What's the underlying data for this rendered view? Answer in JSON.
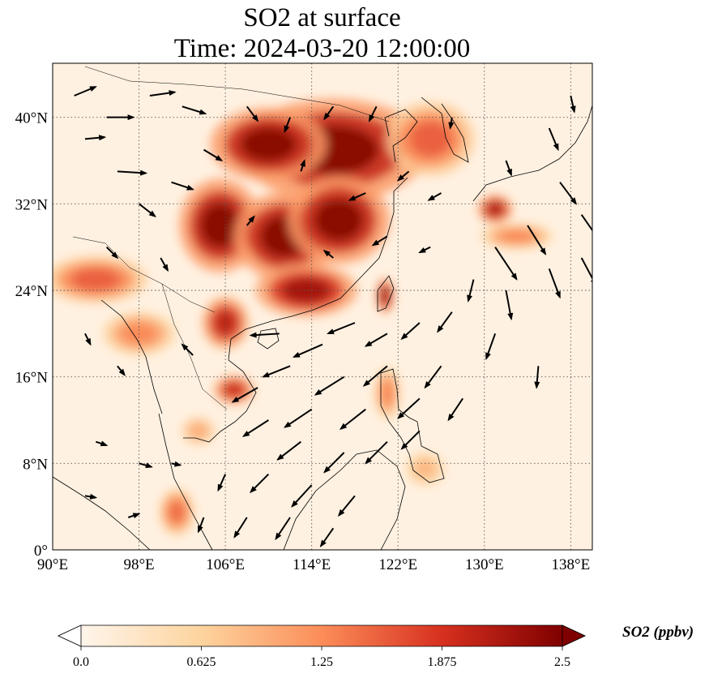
{
  "title": {
    "line1": "SO2 at surface",
    "line2": "Time: 2024-03-20 12:00:00"
  },
  "map": {
    "lon_range": [
      90,
      140
    ],
    "lat_range": [
      0,
      45
    ],
    "lon_ticks": [
      {
        "value": 90,
        "label": "90°E"
      },
      {
        "value": 98,
        "label": "98°E"
      },
      {
        "value": 106,
        "label": "106°E"
      },
      {
        "value": 114,
        "label": "114°E"
      },
      {
        "value": 122,
        "label": "122°E"
      },
      {
        "value": 130,
        "label": "130°E"
      },
      {
        "value": 138,
        "label": "138°E"
      }
    ],
    "lat_ticks": [
      {
        "value": 0,
        "label": "0°"
      },
      {
        "value": 8,
        "label": "8°N"
      },
      {
        "value": 16,
        "label": "16°N"
      },
      {
        "value": 24,
        "label": "24°N"
      },
      {
        "value": 32,
        "label": "32°N"
      },
      {
        "value": 40,
        "label": "40°N"
      }
    ],
    "gridlines": "dotted",
    "field": {
      "variable": "SO2",
      "background_value": 0.08,
      "hotspots": [
        {
          "lon": 116,
          "lat": 37,
          "r_lon": 6.5,
          "r_lat": 3.5,
          "value": 2.5
        },
        {
          "lon": 110,
          "lat": 37.5,
          "r_lon": 4,
          "r_lat": 2.5,
          "value": 2.5
        },
        {
          "lon": 105.5,
          "lat": 30,
          "r_lon": 2.8,
          "r_lat": 3.2,
          "value": 2.5
        },
        {
          "lon": 111.5,
          "lat": 29,
          "r_lon": 3.5,
          "r_lat": 3,
          "value": 2.5
        },
        {
          "lon": 116.5,
          "lat": 30.5,
          "r_lon": 3.5,
          "r_lat": 3,
          "value": 2.5
        },
        {
          "lon": 113.5,
          "lat": 24,
          "r_lon": 3.5,
          "r_lat": 1.8,
          "value": 2.3
        },
        {
          "lon": 106,
          "lat": 21,
          "r_lon": 1.6,
          "r_lat": 1.8,
          "value": 2.1
        },
        {
          "lon": 94,
          "lat": 25,
          "r_lon": 3.5,
          "r_lat": 1.6,
          "value": 1.6
        },
        {
          "lon": 98,
          "lat": 20,
          "r_lon": 2.5,
          "r_lat": 1.5,
          "value": 1.3
        },
        {
          "lon": 106.8,
          "lat": 14.8,
          "r_lon": 1.4,
          "r_lat": 1,
          "value": 2.0
        },
        {
          "lon": 120.8,
          "lat": 23.5,
          "r_lon": 0.6,
          "r_lat": 1.2,
          "value": 2.4
        },
        {
          "lon": 125,
          "lat": 38,
          "r_lon": 3,
          "r_lat": 2.5,
          "value": 1.6
        },
        {
          "lon": 131,
          "lat": 31.5,
          "r_lon": 1.2,
          "r_lat": 1,
          "value": 2.2
        },
        {
          "lon": 133,
          "lat": 29,
          "r_lon": 2.5,
          "r_lat": 0.9,
          "value": 1.3
        },
        {
          "lon": 121,
          "lat": 14.5,
          "r_lon": 0.9,
          "r_lat": 1.8,
          "value": 1.3
        },
        {
          "lon": 124.5,
          "lat": 7.5,
          "r_lon": 1.4,
          "r_lat": 1.2,
          "value": 0.9
        },
        {
          "lon": 101.5,
          "lat": 3.5,
          "r_lon": 1.2,
          "r_lat": 1.6,
          "value": 1.5
        },
        {
          "lon": 103.5,
          "lat": 11,
          "r_lon": 1.2,
          "r_lat": 1,
          "value": 1.0
        }
      ]
    },
    "wind": {
      "vectors": [
        {
          "lon": 92,
          "lat": 42,
          "u": 1.2,
          "v": 0.5
        },
        {
          "lon": 95,
          "lat": 40,
          "u": 1.5,
          "v": 0
        },
        {
          "lon": 93,
          "lat": 38,
          "u": 1.1,
          "v": 0.1
        },
        {
          "lon": 96,
          "lat": 35,
          "u": 1.6,
          "v": -0.1
        },
        {
          "lon": 99,
          "lat": 42,
          "u": 1.4,
          "v": 0.2
        },
        {
          "lon": 102,
          "lat": 41,
          "u": 1.3,
          "v": -0.4
        },
        {
          "lon": 104,
          "lat": 37,
          "u": 1.0,
          "v": -0.6
        },
        {
          "lon": 98,
          "lat": 32,
          "u": 0.9,
          "v": -0.7
        },
        {
          "lon": 101,
          "lat": 34,
          "u": 1.2,
          "v": -0.4
        },
        {
          "lon": 108,
          "lat": 41,
          "u": 0.6,
          "v": -0.8
        },
        {
          "lon": 112,
          "lat": 40,
          "u": -0.3,
          "v": -0.8
        },
        {
          "lon": 116,
          "lat": 41,
          "u": -0.5,
          "v": -0.7
        },
        {
          "lon": 120,
          "lat": 41,
          "u": -0.4,
          "v": -0.8
        },
        {
          "lon": 123,
          "lat": 35,
          "u": -0.6,
          "v": -0.5
        },
        {
          "lon": 126,
          "lat": 33,
          "u": -0.7,
          "v": -0.4
        },
        {
          "lon": 119,
          "lat": 33,
          "u": -0.9,
          "v": -0.4
        },
        {
          "lon": 113,
          "lat": 35,
          "u": 0.2,
          "v": 0.6
        },
        {
          "lon": 108,
          "lat": 30,
          "u": 0.4,
          "v": 0.5
        },
        {
          "lon": 116,
          "lat": 27,
          "u": -0.5,
          "v": 0.4
        },
        {
          "lon": 121,
          "lat": 29,
          "u": -0.8,
          "v": -0.5
        },
        {
          "lon": 132,
          "lat": 36,
          "u": 0.3,
          "v": -0.8
        },
        {
          "lon": 136,
          "lat": 39,
          "u": 0.5,
          "v": -1.2
        },
        {
          "lon": 137,
          "lat": 34,
          "u": 0.9,
          "v": -1.2
        },
        {
          "lon": 139,
          "lat": 31,
          "u": 0.9,
          "v": -1.3
        },
        {
          "lon": 134,
          "lat": 30,
          "u": 1.0,
          "v": -1.6
        },
        {
          "lon": 131,
          "lat": 28,
          "u": 1.2,
          "v": -1.8
        },
        {
          "lon": 136,
          "lat": 26,
          "u": 0.6,
          "v": -1.6
        },
        {
          "lon": 139,
          "lat": 27,
          "u": 0.8,
          "v": -1.5
        },
        {
          "lon": 132,
          "lat": 24,
          "u": 0.3,
          "v": -1.6
        },
        {
          "lon": 129,
          "lat": 25,
          "u": -0.3,
          "v": -1.2
        },
        {
          "lon": 127,
          "lat": 22,
          "u": -0.8,
          "v": -1.1
        },
        {
          "lon": 131,
          "lat": 20,
          "u": -0.5,
          "v": -1.4
        },
        {
          "lon": 135,
          "lat": 17,
          "u": -0.1,
          "v": -1.2
        },
        {
          "lon": 124,
          "lat": 21,
          "u": -1.0,
          "v": -0.9
        },
        {
          "lon": 121,
          "lat": 20,
          "u": -1.2,
          "v": -0.7
        },
        {
          "lon": 118,
          "lat": 21,
          "u": -1.5,
          "v": -0.6
        },
        {
          "lon": 115,
          "lat": 19,
          "u": -1.6,
          "v": -0.7
        },
        {
          "lon": 112,
          "lat": 17,
          "u": -1.5,
          "v": -0.6
        },
        {
          "lon": 111,
          "lat": 20,
          "u": -1.6,
          "v": -0.1
        },
        {
          "lon": 109,
          "lat": 15,
          "u": -1.4,
          "v": -0.8
        },
        {
          "lon": 117,
          "lat": 16,
          "u": -1.6,
          "v": -1.0
        },
        {
          "lon": 121,
          "lat": 17,
          "u": -1.3,
          "v": -1.1
        },
        {
          "lon": 126,
          "lat": 17,
          "u": -0.9,
          "v": -1.2
        },
        {
          "lon": 128,
          "lat": 14,
          "u": -0.8,
          "v": -1.2
        },
        {
          "lon": 124,
          "lat": 14,
          "u": -1.2,
          "v": -1.1
        },
        {
          "lon": 119,
          "lat": 13,
          "u": -1.4,
          "v": -1.1
        },
        {
          "lon": 114,
          "lat": 13,
          "u": -1.5,
          "v": -1.0
        },
        {
          "lon": 110,
          "lat": 12,
          "u": -1.4,
          "v": -0.9
        },
        {
          "lon": 113,
          "lat": 10,
          "u": -1.3,
          "v": -1.0
        },
        {
          "lon": 117,
          "lat": 9,
          "u": -1.1,
          "v": -1.1
        },
        {
          "lon": 121,
          "lat": 10,
          "u": -1.2,
          "v": -1.2
        },
        {
          "lon": 124,
          "lat": 11,
          "u": -1.0,
          "v": -1.0
        },
        {
          "lon": 110,
          "lat": 7,
          "u": -1.0,
          "v": -1.0
        },
        {
          "lon": 114,
          "lat": 6,
          "u": -1.1,
          "v": -1.2
        },
        {
          "lon": 118,
          "lat": 5,
          "u": -0.9,
          "v": -1.1
        },
        {
          "lon": 112,
          "lat": 3,
          "u": -0.8,
          "v": -1.2
        },
        {
          "lon": 108,
          "lat": 3,
          "u": -0.7,
          "v": -1.1
        },
        {
          "lon": 116,
          "lat": 2,
          "u": -0.7,
          "v": -1.0
        },
        {
          "lon": 106,
          "lat": 7,
          "u": -0.4,
          "v": -0.9
        },
        {
          "lon": 104,
          "lat": 3,
          "u": -0.3,
          "v": -0.8
        },
        {
          "lon": 93,
          "lat": 20,
          "u": 0.3,
          "v": -0.6
        },
        {
          "lon": 96,
          "lat": 17,
          "u": 0.4,
          "v": -0.5
        },
        {
          "lon": 94,
          "lat": 10,
          "u": 0.6,
          "v": -0.2
        },
        {
          "lon": 98,
          "lat": 8,
          "u": 0.7,
          "v": -0.2
        },
        {
          "lon": 93,
          "lat": 5,
          "u": 0.6,
          "v": -0.1
        },
        {
          "lon": 97,
          "lat": 3,
          "u": 0.6,
          "v": 0.2
        },
        {
          "lon": 101,
          "lat": 8,
          "u": 0.5,
          "v": -0.1
        },
        {
          "lon": 103,
          "lat": 18,
          "u": -0.6,
          "v": 0.6
        },
        {
          "lon": 100,
          "lat": 27,
          "u": 0.4,
          "v": -0.7
        },
        {
          "lon": 95,
          "lat": 28,
          "u": 0.6,
          "v": -0.6
        },
        {
          "lon": 125,
          "lat": 28,
          "u": -0.6,
          "v": -0.3
        },
        {
          "lon": 127,
          "lat": 40,
          "u": -0.1,
          "v": -0.6
        },
        {
          "lon": 138,
          "lat": 42,
          "u": 0.2,
          "v": -0.9
        }
      ]
    }
  },
  "colorbar": {
    "colors": [
      "#fff5eb",
      "#fdd49e",
      "#fc8d59",
      "#d7301f",
      "#7f0000"
    ],
    "min": 0,
    "max": 2.5,
    "ticks": [
      {
        "value": 0,
        "label": "0.0"
      },
      {
        "value": 0.625,
        "label": "0.625"
      },
      {
        "value": 1.25,
        "label": "1.25"
      },
      {
        "value": 1.875,
        "label": "1.875"
      },
      {
        "value": 2.5,
        "label": "2.5"
      }
    ],
    "label": "SO2 (ppbv)"
  }
}
